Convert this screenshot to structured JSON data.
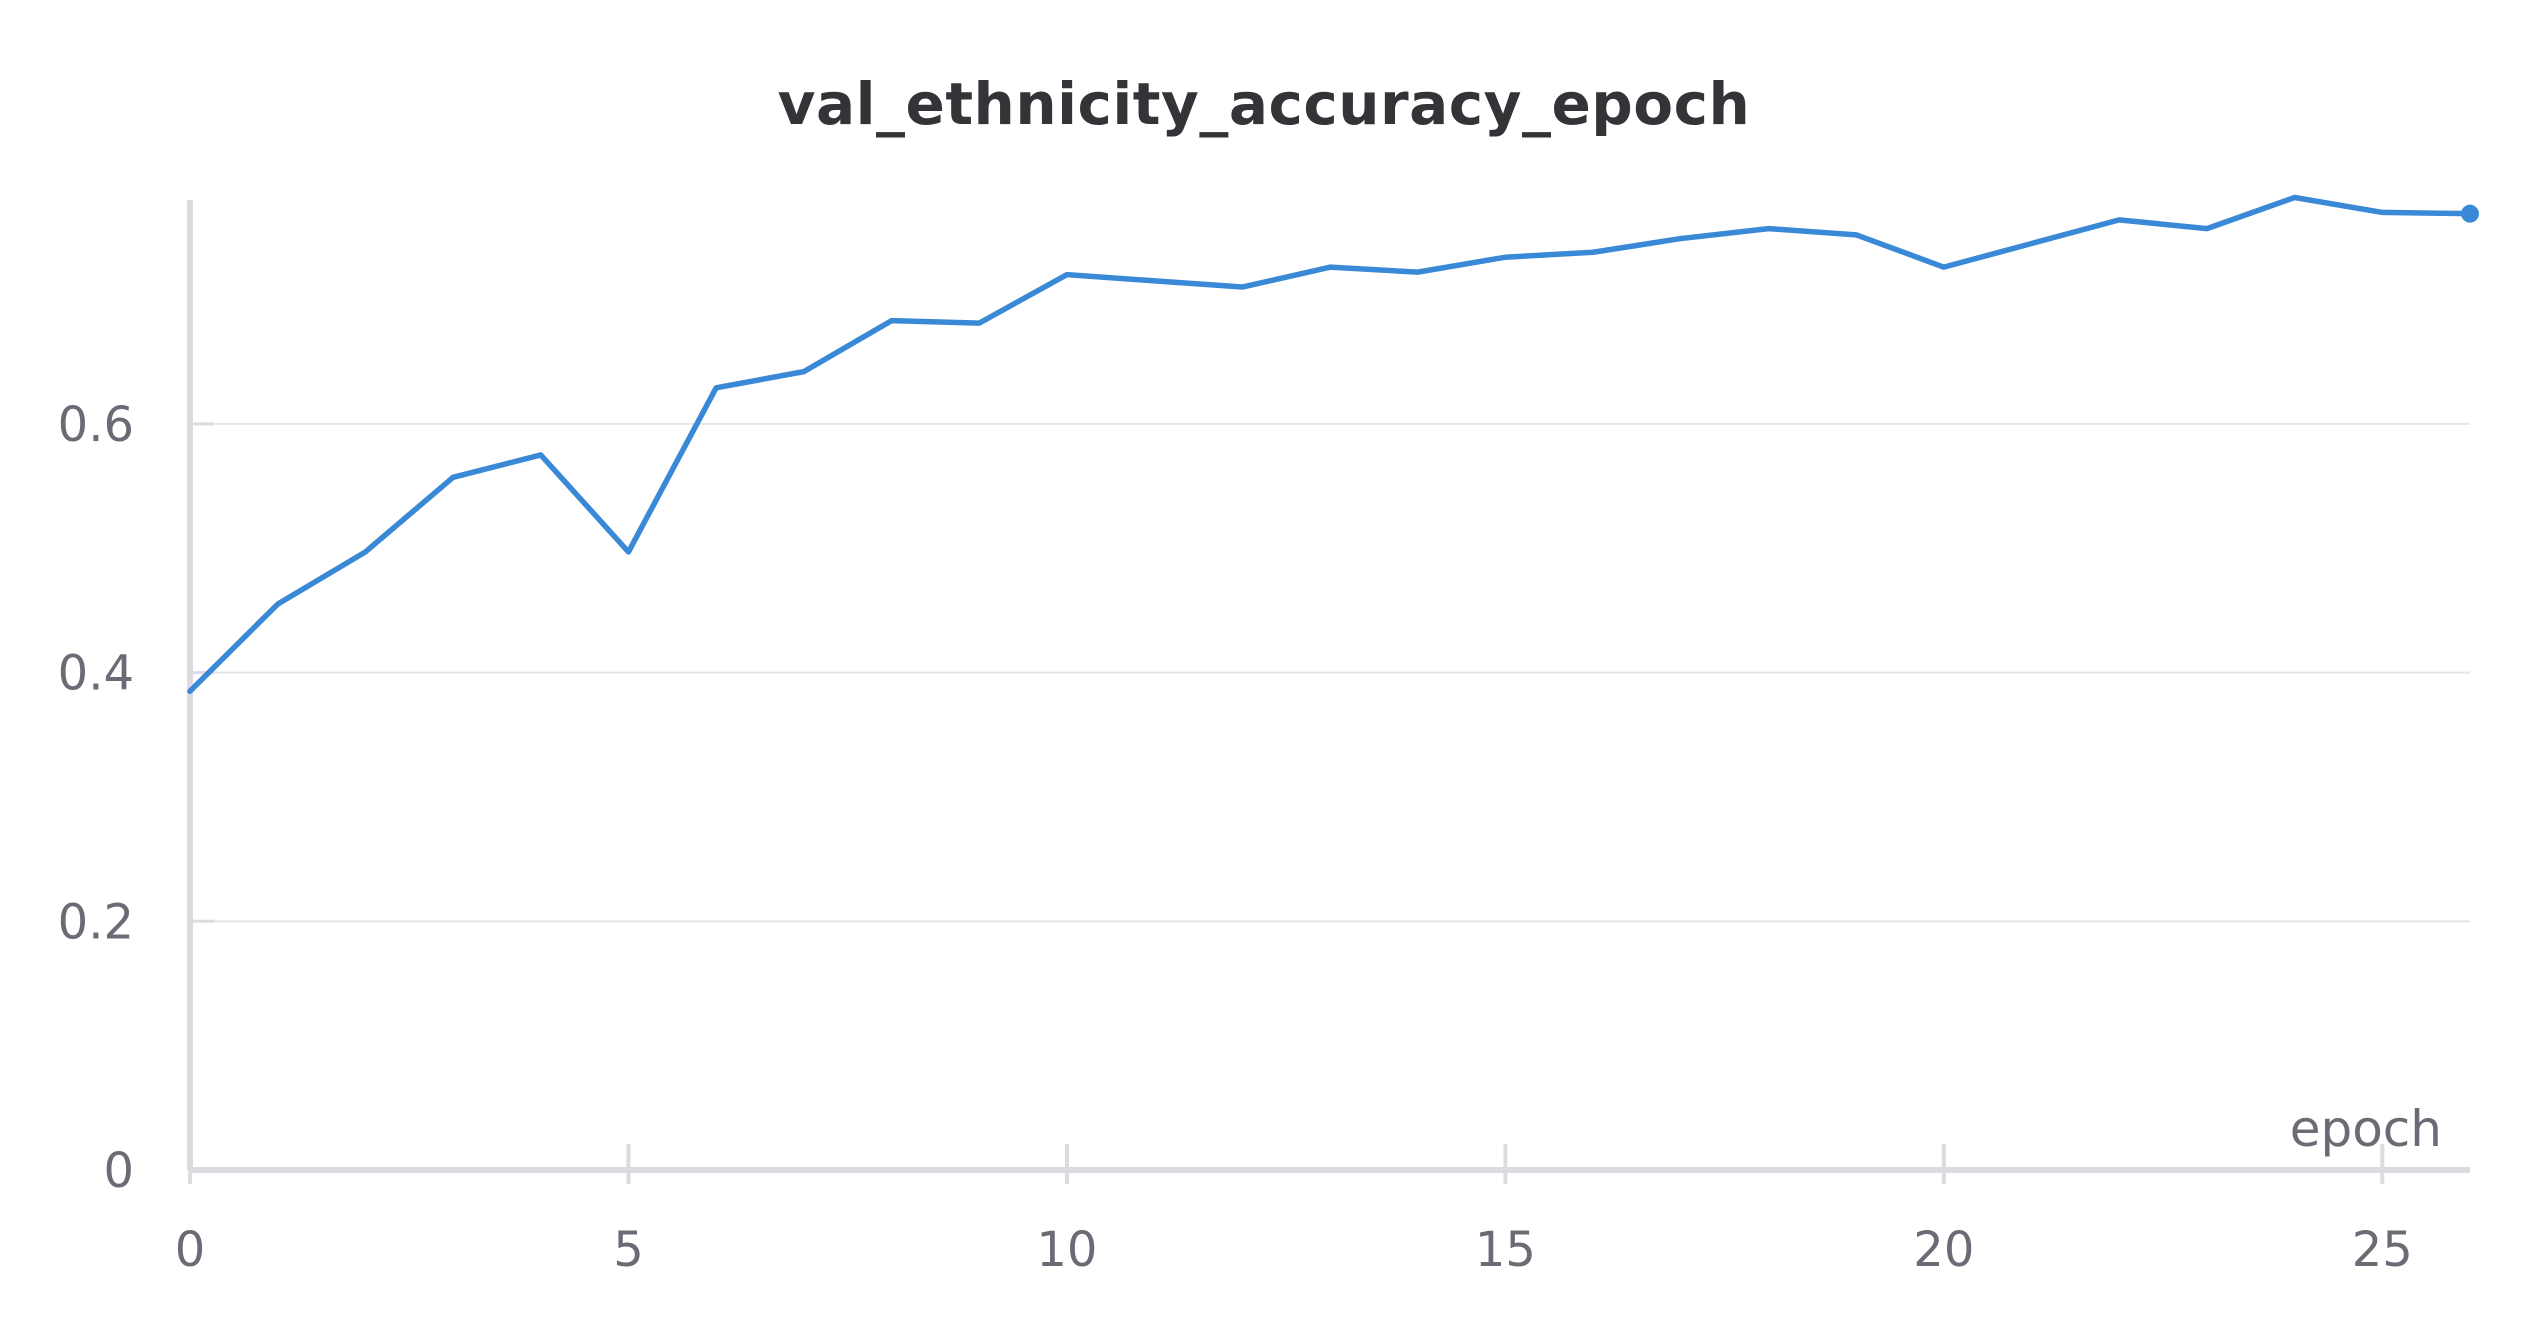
{
  "chart_data": {
    "type": "line",
    "title": "val_ethnicity_accuracy_epoch",
    "xlabel": "epoch",
    "ylabel": "",
    "xlim": [
      0,
      26
    ],
    "ylim": [
      0,
      0.78
    ],
    "x_ticks": [
      0,
      5,
      10,
      15,
      20,
      25
    ],
    "x_tick_labels": [
      "0",
      "5",
      "10",
      "15",
      "20",
      "25"
    ],
    "y_ticks": [
      0,
      0.2,
      0.4,
      0.6
    ],
    "y_tick_labels": [
      "0",
      "0.2",
      "0.4",
      "0.6"
    ],
    "grid": true,
    "line_color": "#3a89d6",
    "series": [
      {
        "x": [
          0,
          1,
          2,
          3,
          4,
          5,
          6,
          7,
          8,
          9,
          10,
          11,
          12,
          13,
          14,
          15,
          16,
          17,
          18,
          19,
          20,
          21,
          22,
          23,
          24,
          25,
          26
        ],
        "values": [
          0.385,
          0.455,
          0.497,
          0.557,
          0.575,
          0.497,
          0.629,
          0.642,
          0.683,
          0.681,
          0.72,
          0.715,
          0.71,
          0.726,
          0.722,
          0.734,
          0.738,
          0.749,
          0.757,
          0.752,
          0.726,
          0.745,
          0.764,
          0.757,
          0.782,
          0.77,
          0.769
        ]
      }
    ]
  }
}
